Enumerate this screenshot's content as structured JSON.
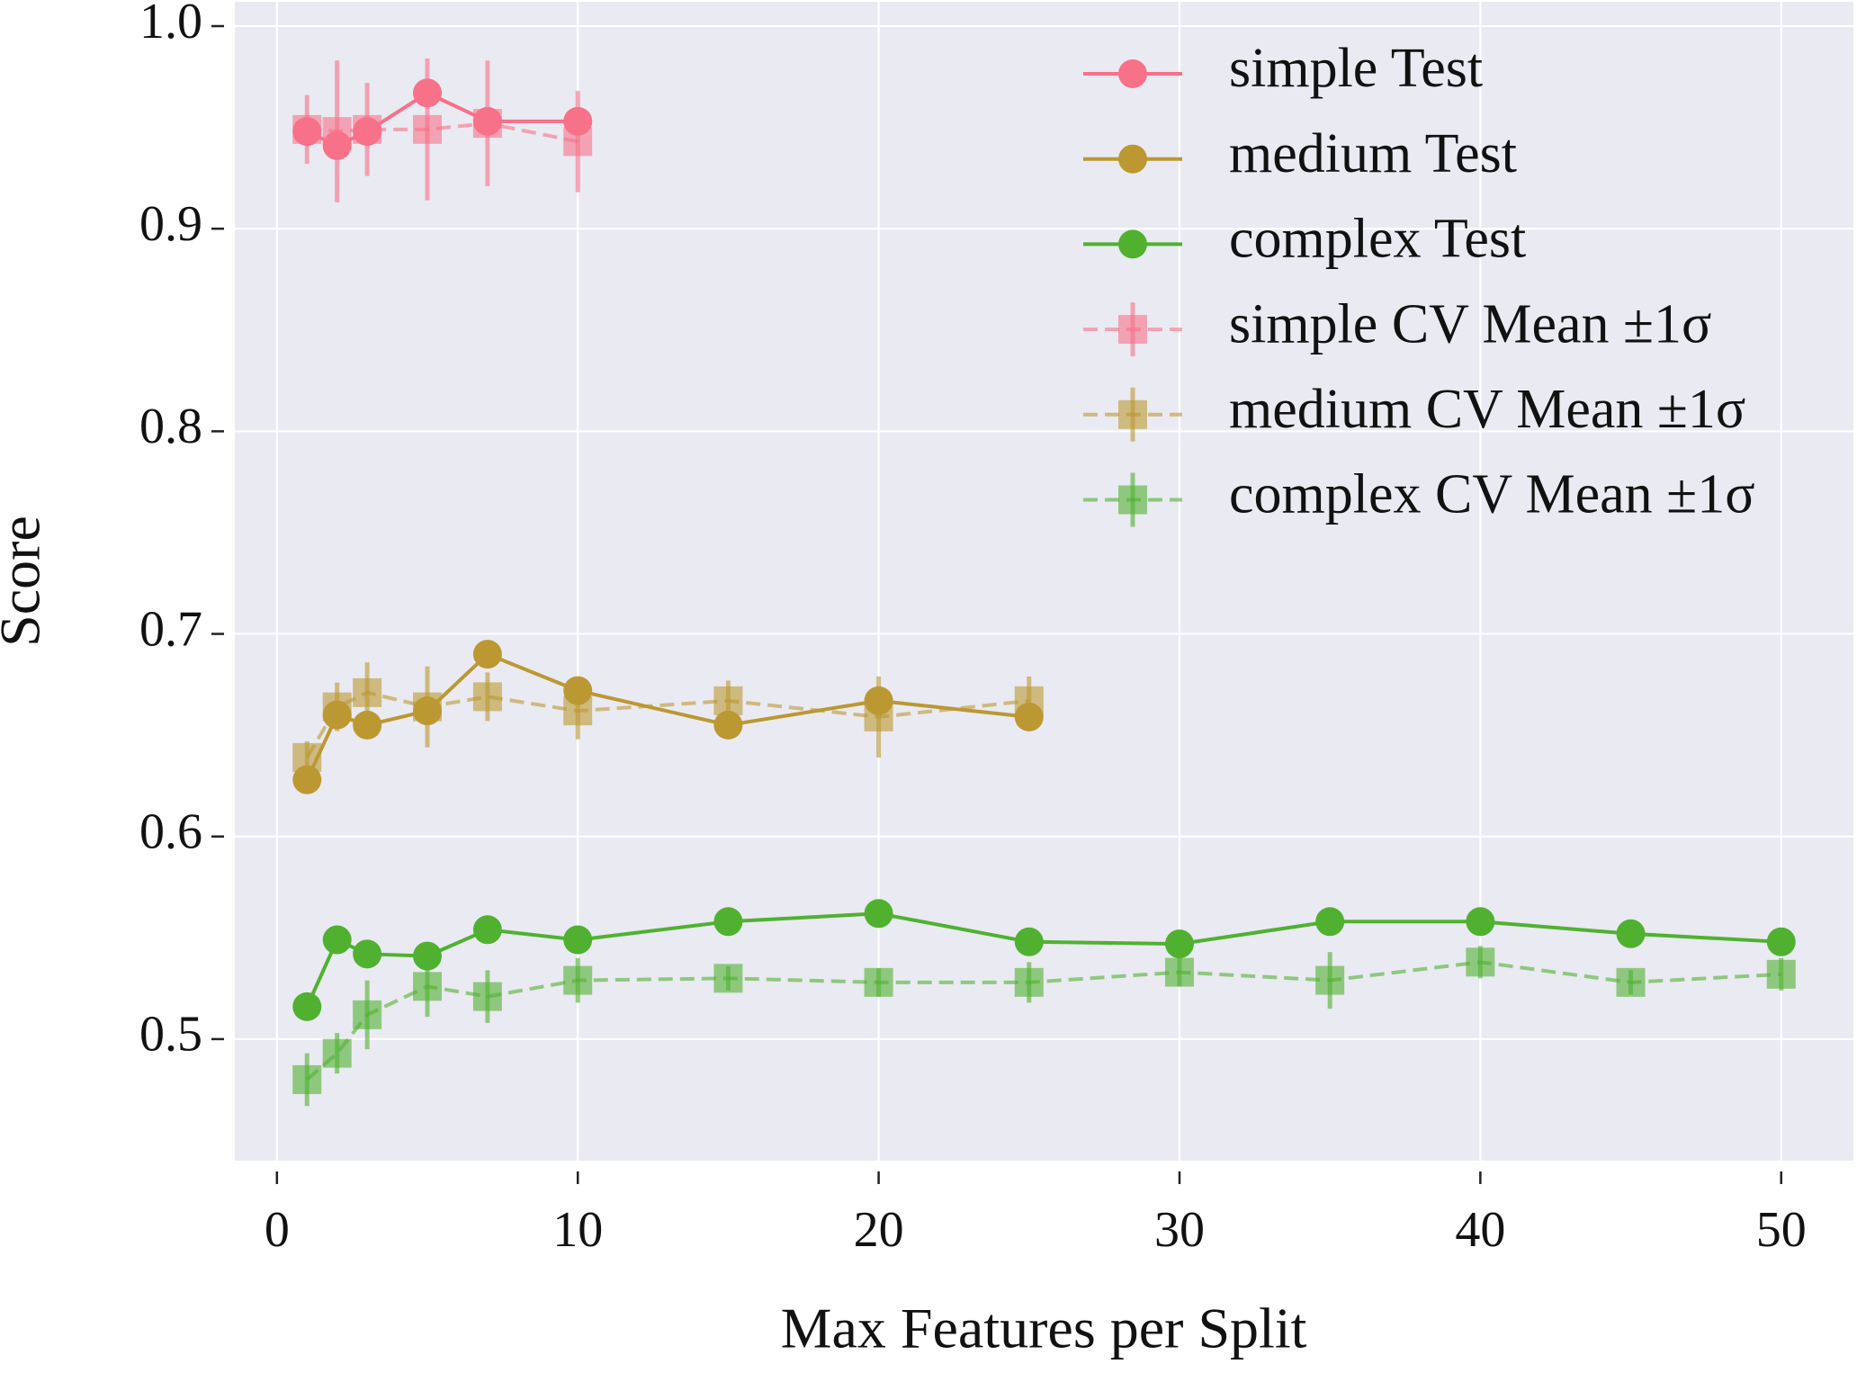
{
  "chart_data": {
    "type": "line",
    "xlabel": "Max Features per Split",
    "ylabel": "Score",
    "xlim": [
      -1.4,
      52.4
    ],
    "ylim": [
      0.44,
      1.012
    ],
    "xticks": [
      0,
      10,
      20,
      30,
      40,
      50
    ],
    "yticks": [
      0.5,
      0.6,
      0.7,
      0.8,
      0.9,
      {
        "value": 1.0,
        "label": "1.0"
      }
    ],
    "grid": true,
    "legend": "upper right",
    "series": [
      {
        "name": "simple Test",
        "color": "#f77189",
        "marker": "circle",
        "linestyle": "solid",
        "x": [
          1,
          2,
          3,
          5,
          7,
          10
        ],
        "values": [
          0.948,
          0.941,
          0.948,
          0.967,
          0.953,
          0.953
        ]
      },
      {
        "name": "medium Test",
        "color": "#bb9832",
        "marker": "circle",
        "linestyle": "solid",
        "x": [
          1,
          2,
          3,
          5,
          7,
          10,
          15,
          20,
          25
        ],
        "values": [
          0.628,
          0.66,
          0.655,
          0.662,
          0.69,
          0.672,
          0.655,
          0.667,
          0.659
        ]
      },
      {
        "name": "complex Test",
        "color": "#50b131",
        "marker": "circle",
        "linestyle": "solid",
        "x": [
          1,
          2,
          3,
          5,
          7,
          10,
          15,
          20,
          25,
          30,
          35,
          40,
          45,
          50
        ],
        "values": [
          0.516,
          0.549,
          0.542,
          0.541,
          0.554,
          0.549,
          0.558,
          0.562,
          0.548,
          0.547,
          0.558,
          0.558,
          0.552,
          0.548
        ]
      },
      {
        "name": "simple CV Mean ±1σ",
        "color": "#f77189",
        "marker": "square",
        "linestyle": "dashed",
        "x": [
          1,
          2,
          3,
          5,
          7,
          10
        ],
        "values": [
          0.949,
          0.948,
          0.949,
          0.949,
          0.952,
          0.943
        ],
        "errors": [
          0.017,
          0.035,
          0.023,
          0.035,
          0.031,
          0.025
        ]
      },
      {
        "name": "medium CV Mean ±1σ",
        "color": "#bb9832",
        "marker": "square",
        "linestyle": "dashed",
        "x": [
          1,
          2,
          3,
          5,
          7,
          10,
          15,
          20,
          25
        ],
        "values": [
          0.639,
          0.664,
          0.671,
          0.664,
          0.669,
          0.662,
          0.667,
          0.659,
          0.667
        ],
        "errors": [
          0.008,
          0.012,
          0.015,
          0.02,
          0.012,
          0.014,
          0.01,
          0.02,
          0.012
        ]
      },
      {
        "name": "complex CV Mean ±1σ",
        "color": "#50b131",
        "marker": "square",
        "linestyle": "dashed",
        "x": [
          1,
          2,
          3,
          5,
          7,
          10,
          15,
          20,
          25,
          30,
          35,
          40,
          45,
          50
        ],
        "values": [
          0.48,
          0.493,
          0.512,
          0.526,
          0.521,
          0.529,
          0.53,
          0.528,
          0.528,
          0.533,
          0.529,
          0.538,
          0.528,
          0.532
        ],
        "errors": [
          0.013,
          0.01,
          0.017,
          0.015,
          0.013,
          0.011,
          0.006,
          0.007,
          0.01,
          0.007,
          0.014,
          0.008,
          0.006,
          0.008
        ]
      }
    ]
  }
}
